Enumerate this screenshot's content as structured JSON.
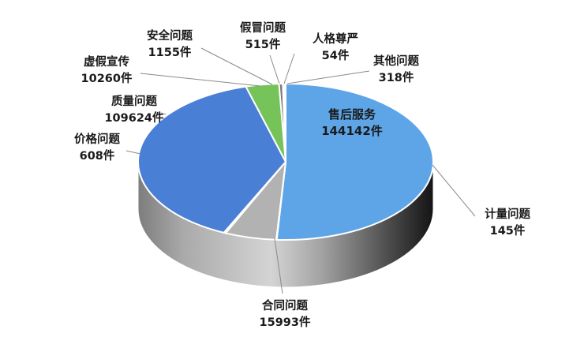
{
  "chart_data": {
    "type": "pie",
    "style": "3d",
    "unit": "件",
    "slices": [
      {
        "name": "售后服务",
        "value": 144142,
        "count_label": "144142件",
        "color": "#5ea5e8"
      },
      {
        "name": "计量问题",
        "value": 145,
        "count_label": "145件",
        "color": "#a9c8e8"
      },
      {
        "name": "合同问题",
        "value": 15993,
        "count_label": "15993件",
        "color": "#b2b2b2"
      },
      {
        "name": "价格问题",
        "value": 608,
        "count_label": "608件",
        "color": "#f0a43a"
      },
      {
        "name": "质量问题",
        "value": 109624,
        "count_label": "109624件",
        "color": "#4a7fd6"
      },
      {
        "name": "虚假宣传",
        "value": 10260,
        "count_label": "10260件",
        "color": "#76c35a"
      },
      {
        "name": "安全问题",
        "value": 1155,
        "count_label": "1155件",
        "color": "#7a7a7a"
      },
      {
        "name": "假冒问题",
        "value": 515,
        "count_label": "515件",
        "color": "#2a5d8c"
      },
      {
        "name": "人格尊严",
        "value": 54,
        "count_label": "54件",
        "color": "#9a9a9a"
      },
      {
        "name": "其他问题",
        "value": 318,
        "count_label": "318件",
        "color": "#ffffff"
      }
    ],
    "title": "",
    "legend": "none"
  }
}
